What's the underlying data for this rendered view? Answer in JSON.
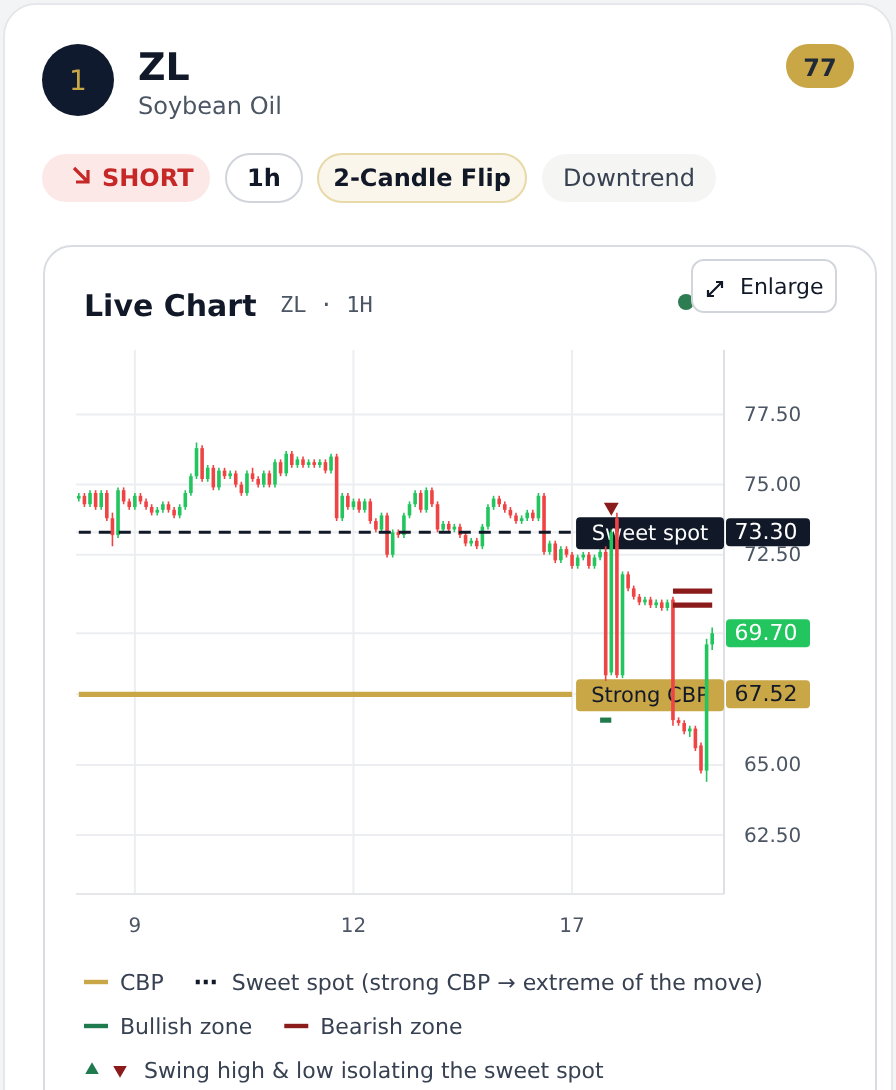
{
  "chart_data": {
    "type": "candlestick",
    "title": "ZL",
    "subtitle": "Soybean Oil",
    "annotations": [
      "1",
      "77",
      "SHORT",
      "1h",
      "2-Candle Flip",
      "Downtrend",
      "Live Chart",
      "ZL · 1H",
      "Enlarge"
    ],
    "categories": [
      null,
      null,
      null,
      null,
      null,
      null,
      null,
      null,
      null,
      null,
      "9",
      null,
      null,
      null,
      null,
      null,
      null,
      null,
      null,
      null,
      null,
      null,
      null,
      null,
      null,
      null,
      null,
      null,
      null,
      null,
      null,
      null,
      null,
      null,
      null,
      null,
      null,
      null,
      null,
      null,
      null,
      null,
      null,
      null,
      null,
      null,
      null,
      null,
      null,
      "12",
      null,
      null,
      null,
      null,
      null,
      null,
      null,
      null,
      null,
      null,
      null,
      null,
      null,
      null,
      null,
      null,
      null,
      null,
      null,
      null,
      null,
      null,
      null,
      null,
      null,
      null,
      null,
      null,
      null,
      null,
      null,
      null,
      null,
      null,
      null,
      null,
      null,
      null,
      "17",
      null,
      null,
      null,
      null,
      null,
      null,
      null,
      null,
      null,
      null,
      null,
      null,
      null,
      null,
      null,
      null,
      null,
      null,
      null,
      null,
      null,
      null,
      null,
      null,
      null
    ],
    "ylim": [
      60.4,
      79.8
    ],
    "yticks": [
      {
        "value": 62.5,
        "label": "62.50"
      },
      {
        "value": 65,
        "label": "65.00"
      },
      {
        "value": 67.52,
        "label": "67.52"
      },
      {
        "value": 69.7,
        "label": "69.70"
      },
      {
        "value": 72.5,
        "label": "72.50"
      },
      {
        "value": 73.3,
        "label": "73.30"
      },
      {
        "value": 75,
        "label": "75.00"
      },
      {
        "value": 77.5,
        "label": "77.50"
      }
    ],
    "grid": true,
    "legend": "bottom",
    "series": [
      {
        "colors": [
          "#22c55e",
          "#ef4444",
          "#22c55e",
          "#ef4444",
          "#22c55e",
          "#ef4444",
          "#ef4444",
          "#22c55e",
          "#ef4444",
          "#ef4444",
          "#22c55e",
          "#ef4444",
          "#ef4444",
          "#ef4444",
          "#22c55e",
          "#22c55e",
          "#ef4444",
          "#ef4444",
          "#22c55e",
          "#22c55e",
          "#22c55e",
          "#22c55e",
          "#ef4444",
          "#22c55e",
          "#ef4444",
          "#22c55e",
          "#ef4444",
          "#22c55e",
          "#ef4444",
          "#ef4444",
          "#22c55e",
          "#ef4444",
          "#ef4444",
          "#22c55e",
          "#ef4444",
          "#22c55e",
          "#ef4444",
          "#22c55e",
          "#ef4444",
          "#22c55e",
          "#ef4444",
          "#22c55e",
          "#ef4444",
          "#22c55e",
          "#ef4444",
          "#22c55e",
          "#ef4444",
          "#22c55e",
          "#ef4444",
          "#22c55e",
          "#ef4444",
          "#22c55e",
          "#ef4444",
          "#ef4444",
          "#22c55e",
          "#ef4444",
          "#22c55e",
          "#ef4444",
          "#22c55e",
          "#22c55e",
          "#22c55e",
          "#ef4444",
          "#22c55e",
          "#ef4444",
          "#ef4444",
          "#22c55e",
          "#ef4444",
          "#22c55e",
          "#ef4444",
          "#ef4444",
          "#22c55e",
          "#ef4444",
          "#22c55e",
          "#22c55e",
          "#22c55e",
          "#ef4444",
          "#ef4444",
          "#ef4444",
          "#ef4444",
          "#22c55e",
          "#22c55e",
          "#ef4444",
          "#22c55e",
          "#ef4444",
          "#22c55e",
          "#ef4444",
          "#22c55e",
          "#ef4444",
          "#ef4444",
          "#22c55e",
          "#22c55e",
          "#ef4444",
          "#22c55e",
          "#22c55e",
          "#ef4444",
          "#22c55e",
          "#ef4444",
          "#22c55e",
          "#ef4444",
          "#ef4444",
          "#ef4444",
          "#22c55e",
          "#ef4444",
          "#22c55e",
          "#ef4444",
          "#22c55e",
          "#ef4444",
          "#ef4444",
          "#ef4444",
          "#22c55e",
          "#ef4444",
          "#ef4444",
          "#22c55e",
          "#22c55e"
        ],
        "ohlc": [
          [
            74.5,
            74.7,
            74.4,
            74.6
          ],
          [
            74.6,
            74.7,
            74.2,
            74.3
          ],
          [
            74.3,
            74.8,
            74.2,
            74.7
          ],
          [
            74.7,
            74.8,
            74.1,
            74.2
          ],
          [
            74.2,
            74.8,
            74.1,
            74.7
          ],
          [
            74.7,
            74.8,
            73.7,
            73.8
          ],
          [
            73.8,
            74.0,
            72.8,
            73.2
          ],
          [
            73.2,
            74.9,
            73.1,
            74.8
          ],
          [
            74.8,
            74.9,
            74.3,
            74.4
          ],
          [
            74.4,
            74.5,
            74.1,
            74.2
          ],
          [
            74.2,
            74.7,
            74.1,
            74.6
          ],
          [
            74.6,
            74.7,
            74.3,
            74.4
          ],
          [
            74.4,
            74.5,
            74.1,
            74.2
          ],
          [
            74.2,
            74.3,
            73.9,
            74.0
          ],
          [
            74.0,
            74.2,
            73.9,
            74.1
          ],
          [
            74.1,
            74.4,
            74.0,
            74.3
          ],
          [
            74.3,
            74.4,
            74.0,
            74.1
          ],
          [
            74.1,
            74.2,
            73.8,
            73.9
          ],
          [
            73.9,
            74.3,
            73.8,
            74.2
          ],
          [
            74.2,
            74.8,
            74.1,
            74.7
          ],
          [
            74.7,
            75.4,
            74.6,
            75.3
          ],
          [
            75.3,
            76.5,
            75.2,
            76.3
          ],
          [
            76.3,
            76.4,
            75.1,
            75.2
          ],
          [
            75.2,
            75.7,
            75.1,
            75.6
          ],
          [
            75.6,
            75.7,
            74.8,
            74.9
          ],
          [
            74.9,
            75.6,
            74.8,
            75.5
          ],
          [
            75.5,
            75.6,
            75.2,
            75.3
          ],
          [
            75.3,
            75.5,
            75.2,
            75.4
          ],
          [
            75.4,
            75.5,
            74.9,
            75.0
          ],
          [
            75.0,
            75.1,
            74.6,
            74.7
          ],
          [
            74.7,
            75.5,
            74.6,
            75.4
          ],
          [
            75.4,
            75.6,
            75.1,
            75.2
          ],
          [
            75.2,
            75.3,
            74.9,
            75.0
          ],
          [
            75.0,
            75.5,
            74.9,
            75.4
          ],
          [
            75.4,
            75.5,
            74.9,
            75.0
          ],
          [
            75.0,
            75.9,
            74.9,
            75.8
          ],
          [
            75.8,
            75.9,
            75.3,
            75.4
          ],
          [
            75.4,
            76.2,
            75.3,
            76.1
          ],
          [
            76.1,
            76.2,
            75.6,
            75.7
          ],
          [
            75.7,
            76.0,
            75.6,
            75.9
          ],
          [
            75.9,
            76.0,
            75.6,
            75.7
          ],
          [
            75.7,
            75.9,
            75.6,
            75.8
          ],
          [
            75.8,
            75.9,
            75.6,
            75.7
          ],
          [
            75.7,
            75.9,
            75.6,
            75.8
          ],
          [
            75.8,
            75.9,
            75.4,
            75.5
          ],
          [
            75.5,
            76.1,
            75.4,
            76.0
          ],
          [
            76.0,
            76.1,
            73.7,
            73.8
          ],
          [
            73.8,
            74.7,
            73.7,
            74.6
          ],
          [
            74.6,
            74.7,
            74.1,
            74.2
          ],
          [
            74.2,
            74.5,
            74.1,
            74.4
          ],
          [
            74.4,
            74.5,
            74.0,
            74.1
          ],
          [
            74.1,
            74.5,
            74.0,
            74.4
          ],
          [
            74.4,
            74.5,
            73.6,
            73.7
          ],
          [
            73.7,
            73.8,
            73.3,
            73.4
          ],
          [
            73.4,
            74.0,
            73.3,
            73.9
          ],
          [
            73.9,
            74.0,
            72.4,
            72.5
          ],
          [
            72.5,
            73.4,
            72.4,
            73.3
          ],
          [
            73.3,
            73.4,
            73.1,
            73.2
          ],
          [
            73.2,
            74.0,
            73.1,
            73.9
          ],
          [
            73.9,
            74.4,
            73.8,
            74.3
          ],
          [
            74.3,
            74.8,
            74.2,
            74.7
          ],
          [
            74.7,
            74.8,
            74.0,
            74.1
          ],
          [
            74.1,
            74.9,
            74.0,
            74.8
          ],
          [
            74.8,
            74.9,
            74.2,
            74.3
          ],
          [
            74.3,
            74.4,
            73.3,
            73.4
          ],
          [
            73.4,
            73.7,
            73.3,
            73.6
          ],
          [
            73.6,
            73.7,
            73.3,
            73.4
          ],
          [
            73.4,
            73.6,
            73.3,
            73.5
          ],
          [
            73.5,
            73.6,
            73.1,
            73.2
          ],
          [
            73.2,
            73.3,
            72.8,
            72.9
          ],
          [
            72.9,
            73.1,
            72.8,
            73.0
          ],
          [
            73.0,
            73.1,
            72.7,
            72.8
          ],
          [
            72.8,
            73.6,
            72.7,
            73.5
          ],
          [
            73.5,
            74.3,
            73.4,
            74.2
          ],
          [
            74.2,
            74.6,
            74.1,
            74.5
          ],
          [
            74.5,
            74.6,
            74.2,
            74.3
          ],
          [
            74.3,
            74.4,
            74.0,
            74.1
          ],
          [
            74.1,
            74.2,
            73.8,
            73.9
          ],
          [
            73.9,
            74.0,
            73.6,
            73.7
          ],
          [
            73.7,
            73.9,
            73.6,
            73.8
          ],
          [
            73.8,
            74.1,
            73.7,
            74.0
          ],
          [
            74.0,
            74.1,
            73.7,
            73.8
          ],
          [
            73.8,
            74.7,
            73.7,
            74.6
          ],
          [
            74.6,
            74.7,
            72.5,
            72.6
          ],
          [
            72.6,
            73.0,
            72.5,
            72.9
          ],
          [
            72.9,
            73.0,
            72.2,
            72.3
          ],
          [
            72.3,
            72.8,
            72.2,
            72.7
          ],
          [
            72.7,
            72.8,
            72.4,
            72.5
          ],
          [
            72.5,
            72.6,
            72.0,
            72.1
          ],
          [
            72.1,
            72.5,
            72.0,
            72.4
          ],
          [
            72.4,
            72.6,
            72.3,
            72.5
          ],
          [
            72.5,
            72.6,
            72.0,
            72.1
          ],
          [
            72.1,
            72.5,
            72.0,
            72.4
          ],
          [
            72.4,
            72.7,
            72.3,
            72.6
          ],
          [
            72.6,
            72.8,
            68.0,
            68.2
          ],
          [
            68.3,
            73.4,
            68.2,
            73.3
          ],
          [
            73.8,
            74.0,
            68.1,
            68.2
          ],
          [
            68.2,
            71.9,
            68.1,
            71.8
          ],
          [
            71.8,
            71.9,
            71.2,
            71.3
          ],
          [
            71.3,
            71.4,
            70.9,
            71.0
          ],
          [
            71.0,
            71.1,
            70.7,
            70.8
          ],
          [
            70.8,
            71.0,
            70.7,
            70.9
          ],
          [
            70.9,
            71.0,
            70.6,
            70.7
          ],
          [
            70.7,
            70.9,
            70.6,
            70.8
          ],
          [
            70.8,
            70.9,
            70.5,
            70.6
          ],
          [
            70.6,
            70.9,
            70.5,
            70.8
          ],
          [
            70.9,
            71.0,
            66.4,
            66.6
          ],
          [
            66.6,
            66.7,
            66.4,
            66.5
          ],
          [
            66.5,
            66.6,
            66.1,
            66.2
          ],
          [
            66.2,
            66.4,
            66.0,
            66.3
          ],
          [
            66.3,
            66.4,
            65.5,
            65.6
          ],
          [
            65.7,
            65.8,
            64.7,
            64.8
          ],
          [
            64.8,
            69.5,
            64.4,
            69.3
          ],
          [
            69.3,
            69.9,
            69.1,
            69.7
          ]
        ]
      },
      {
        "type": "line",
        "name": "CBP",
        "color": "#c9a646",
        "values": [
          67.52,
          67.52,
          67.52,
          67.52,
          67.52,
          67.52,
          67.52,
          67.52,
          67.52,
          67.52,
          67.52,
          67.52,
          67.52,
          67.52,
          67.52,
          67.52,
          67.52,
          67.52,
          67.52,
          67.52,
          67.52,
          67.52,
          67.52,
          67.52,
          67.52,
          67.52,
          67.52,
          67.52,
          67.52,
          67.52,
          67.52,
          67.52,
          67.52,
          67.52,
          67.52,
          67.52,
          67.52,
          67.52,
          67.52,
          67.52,
          67.52,
          67.52,
          67.52,
          67.52,
          67.52,
          67.52,
          67.52,
          67.52,
          67.52,
          67.52,
          67.52,
          67.52,
          67.52,
          67.52,
          67.52,
          67.52,
          67.52,
          67.52,
          67.52,
          67.52,
          67.52,
          67.52,
          67.52,
          67.52,
          67.52,
          67.52,
          67.52,
          67.52,
          67.52,
          67.52,
          67.52,
          67.52,
          67.52,
          67.52,
          67.52,
          67.52,
          67.52,
          67.52,
          67.52,
          67.52,
          67.52,
          67.52,
          67.52,
          67.52,
          67.52,
          67.52,
          67.52,
          67.52,
          67.52,
          null,
          null,
          null,
          null,
          null,
          null,
          null,
          null,
          null,
          null,
          null,
          null,
          null,
          null,
          null,
          null,
          null,
          null,
          null,
          null,
          null,
          null,
          null,
          null,
          null
        ],
        "value_labels": [
          null,
          null,
          null,
          null,
          null,
          null,
          null,
          null,
          null,
          null,
          null,
          null,
          null,
          null,
          null,
          null,
          null,
          null,
          null,
          null,
          null,
          null,
          null,
          null,
          null,
          null,
          null,
          null,
          null,
          null,
          null,
          null,
          null,
          null,
          null,
          null,
          null,
          null,
          null,
          null,
          null,
          null,
          null,
          null,
          null,
          null,
          null,
          null,
          null,
          null,
          null,
          null,
          null,
          null,
          null,
          null,
          null,
          null,
          null,
          null,
          null,
          null,
          null,
          null,
          null,
          null,
          null,
          null,
          null,
          null,
          null,
          null,
          null,
          null,
          null,
          null,
          null,
          null,
          null,
          null,
          null,
          null,
          null,
          null,
          null,
          null,
          null,
          null,
          "Strong CBP",
          null,
          null,
          null,
          null,
          null,
          null,
          null,
          null,
          null,
          null,
          null,
          null,
          null,
          null,
          null,
          null,
          null,
          null,
          null,
          null,
          null,
          null,
          null,
          null,
          null
        ]
      },
      {
        "type": "line",
        "name": "Sweet spot (strong CBP → extreme of the move)",
        "color": "#111827",
        "line_style": "dashed",
        "values": [
          73.3,
          73.3,
          73.3,
          73.3,
          73.3,
          73.3,
          73.3,
          73.3,
          73.3,
          73.3,
          73.3,
          73.3,
          73.3,
          73.3,
          73.3,
          73.3,
          73.3,
          73.3,
          73.3,
          73.3,
          73.3,
          73.3,
          73.3,
          73.3,
          73.3,
          73.3,
          73.3,
          73.3,
          73.3,
          73.3,
          73.3,
          73.3,
          73.3,
          73.3,
          73.3,
          73.3,
          73.3,
          73.3,
          73.3,
          73.3,
          73.3,
          73.3,
          73.3,
          73.3,
          73.3,
          73.3,
          73.3,
          73.3,
          73.3,
          73.3,
          73.3,
          73.3,
          73.3,
          73.3,
          73.3,
          73.3,
          73.3,
          73.3,
          73.3,
          73.3,
          73.3,
          73.3,
          73.3,
          73.3,
          73.3,
          73.3,
          73.3,
          73.3,
          73.3,
          73.3,
          73.3,
          73.3,
          73.3,
          73.3,
          73.3,
          73.3,
          73.3,
          73.3,
          73.3,
          73.3,
          73.3,
          73.3,
          73.3,
          73.3,
          73.3,
          73.3,
          73.3,
          73.3,
          73.3,
          null,
          null,
          null,
          null,
          null,
          null,
          null,
          null,
          null,
          null,
          null,
          null,
          null,
          null,
          null,
          null,
          null,
          null,
          null,
          null,
          null,
          null,
          null,
          null,
          null
        ],
        "value_labels": [
          null,
          null,
          null,
          null,
          null,
          null,
          null,
          null,
          null,
          null,
          null,
          null,
          null,
          null,
          null,
          null,
          null,
          null,
          null,
          null,
          null,
          null,
          null,
          null,
          null,
          null,
          null,
          null,
          null,
          null,
          null,
          null,
          null,
          null,
          null,
          null,
          null,
          null,
          null,
          null,
          null,
          null,
          null,
          null,
          null,
          null,
          null,
          null,
          null,
          null,
          null,
          null,
          null,
          null,
          null,
          null,
          null,
          null,
          null,
          null,
          null,
          null,
          null,
          null,
          null,
          null,
          null,
          null,
          null,
          null,
          null,
          null,
          null,
          null,
          null,
          null,
          null,
          null,
          null,
          null,
          null,
          null,
          null,
          null,
          null,
          null,
          null,
          null,
          "Sweet spot",
          null,
          null,
          null,
          null,
          null,
          null,
          null,
          null,
          null,
          null,
          null,
          null,
          null,
          null,
          null,
          null,
          null,
          null,
          null,
          null,
          null,
          null,
          null,
          null,
          null
        ]
      },
      {
        "type": "line",
        "name": "Bullish zone",
        "color": "#1f7a4d",
        "values": [
          null,
          null,
          null,
          null,
          null,
          null,
          null,
          null,
          null,
          null,
          null,
          null,
          null,
          null,
          null,
          null,
          null,
          null,
          null,
          null,
          null,
          null,
          null,
          null,
          null,
          null,
          null,
          null,
          null,
          null,
          null,
          null,
          null,
          null,
          null,
          null,
          null,
          null,
          null,
          null,
          null,
          null,
          null,
          null,
          null,
          null,
          null,
          null,
          null,
          null,
          null,
          null,
          null,
          null,
          null,
          null,
          null,
          null,
          null,
          null,
          null,
          null,
          null,
          null,
          null,
          null,
          null,
          null,
          null,
          null,
          null,
          null,
          null,
          null,
          null,
          null,
          null,
          null,
          null,
          null,
          null,
          null,
          null,
          null,
          null,
          null,
          null,
          null,
          null,
          null,
          null,
          null,
          null,
          66.6,
          66.6,
          66.6,
          null,
          null,
          null,
          null,
          null,
          null,
          null,
          null,
          null,
          null,
          null,
          null,
          null,
          null,
          null,
          null,
          null,
          null
        ]
      },
      {
        "type": "line",
        "name": "Bearish zone",
        "color": "#8b1a1a",
        "values": [
          null,
          null,
          null,
          null,
          null,
          null,
          null,
          null,
          null,
          null,
          null,
          null,
          null,
          null,
          null,
          null,
          null,
          null,
          null,
          null,
          null,
          null,
          null,
          null,
          null,
          null,
          null,
          null,
          null,
          null,
          null,
          null,
          null,
          null,
          null,
          null,
          null,
          null,
          null,
          null,
          null,
          null,
          null,
          null,
          null,
          null,
          null,
          null,
          null,
          null,
          null,
          null,
          null,
          null,
          null,
          null,
          null,
          null,
          null,
          null,
          null,
          null,
          null,
          null,
          null,
          null,
          null,
          null,
          null,
          null,
          null,
          null,
          null,
          null,
          null,
          null,
          null,
          null,
          null,
          null,
          null,
          null,
          null,
          null,
          null,
          null,
          null,
          null,
          null,
          null,
          null,
          null,
          null,
          null,
          null,
          null,
          null,
          null,
          null,
          null,
          null,
          null,
          null,
          null,
          null,
          null,
          71.2,
          71.2,
          71.2,
          71.2,
          71.2,
          71.2,
          71.2,
          71.2
        ]
      },
      {
        "type": "line",
        "color": "#8b1a1a",
        "values": [
          null,
          null,
          null,
          null,
          null,
          null,
          null,
          null,
          null,
          null,
          null,
          null,
          null,
          null,
          null,
          null,
          null,
          null,
          null,
          null,
          null,
          null,
          null,
          null,
          null,
          null,
          null,
          null,
          null,
          null,
          null,
          null,
          null,
          null,
          null,
          null,
          null,
          null,
          null,
          null,
          null,
          null,
          null,
          null,
          null,
          null,
          null,
          null,
          null,
          null,
          null,
          null,
          null,
          null,
          null,
          null,
          null,
          null,
          null,
          null,
          null,
          null,
          null,
          null,
          null,
          null,
          null,
          null,
          null,
          null,
          null,
          null,
          null,
          null,
          null,
          null,
          null,
          null,
          null,
          null,
          null,
          null,
          null,
          null,
          null,
          null,
          null,
          null,
          null,
          null,
          null,
          null,
          null,
          null,
          null,
          null,
          null,
          null,
          null,
          null,
          null,
          null,
          null,
          null,
          null,
          null,
          70.7,
          70.7,
          70.7,
          70.7,
          70.7,
          70.7,
          70.7,
          70.7
        ]
      },
      {
        "type": "scatter",
        "name": "Swing high & low isolating the sweet spot",
        "color": "#8b1a1a",
        "marker": "triangle",
        "values": [
          null,
          null,
          null,
          null,
          null,
          null,
          null,
          null,
          null,
          null,
          null,
          null,
          null,
          null,
          null,
          null,
          null,
          null,
          null,
          null,
          null,
          null,
          null,
          null,
          null,
          null,
          null,
          null,
          null,
          null,
          null,
          null,
          null,
          null,
          null,
          null,
          null,
          null,
          null,
          null,
          null,
          null,
          null,
          null,
          null,
          null,
          null,
          null,
          null,
          null,
          null,
          null,
          null,
          null,
          null,
          null,
          null,
          null,
          null,
          null,
          null,
          null,
          null,
          null,
          null,
          null,
          null,
          null,
          null,
          null,
          null,
          null,
          null,
          null,
          null,
          null,
          null,
          null,
          null,
          null,
          null,
          null,
          null,
          null,
          null,
          null,
          null,
          null,
          null,
          null,
          null,
          null,
          null,
          null,
          null,
          74.2,
          null,
          null,
          null,
          null,
          null,
          null,
          null,
          null,
          null,
          null,
          null,
          null,
          null,
          null,
          null,
          null,
          null,
          null
        ]
      }
    ]
  }
}
